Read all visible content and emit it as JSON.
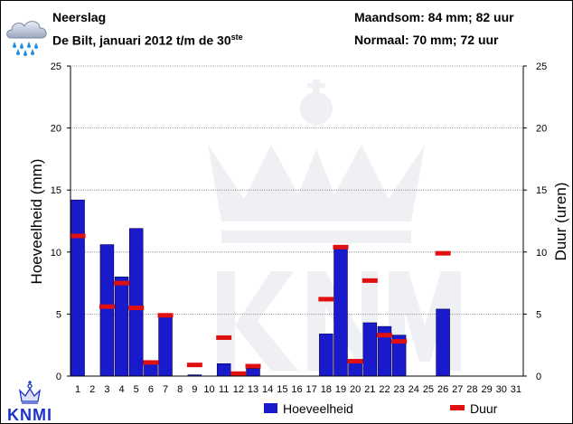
{
  "header": {
    "title": "Neerslag",
    "subtitle_main": "De Bilt, januari 2012 t/m de 30",
    "subtitle_sup": "ste",
    "maandsom": "Maandsom: 84 mm; 82 uur",
    "normaal": "Normaal: 70 mm; 72 uur"
  },
  "logo_text": "KNMI",
  "icon": "rain-cloud-icon",
  "chart_data": {
    "type": "bar",
    "categories": [
      "1",
      "2",
      "3",
      "4",
      "5",
      "6",
      "7",
      "8",
      "9",
      "10",
      "11",
      "12",
      "13",
      "14",
      "15",
      "16",
      "17",
      "18",
      "19",
      "20",
      "21",
      "22",
      "23",
      "24",
      "25",
      "26",
      "27",
      "28",
      "29",
      "30",
      "31"
    ],
    "series": [
      {
        "name": "Hoeveelheid",
        "type": "bar",
        "axis": "left",
        "color": "#1a1acd",
        "values": [
          14.2,
          0,
          10.6,
          8.0,
          11.9,
          1.0,
          4.8,
          0,
          0.1,
          0,
          1.0,
          0.1,
          0.6,
          0,
          0,
          0,
          0,
          3.4,
          10.3,
          1.1,
          4.3,
          4.0,
          3.3,
          0,
          0,
          5.4,
          0,
          0,
          0,
          0,
          0
        ]
      },
      {
        "name": "Duur",
        "type": "marker",
        "axis": "right",
        "color": "#e01010",
        "values": [
          11.3,
          null,
          5.6,
          7.5,
          5.5,
          1.1,
          4.9,
          null,
          0.9,
          null,
          3.1,
          0.2,
          0.8,
          null,
          null,
          null,
          null,
          6.2,
          10.4,
          1.2,
          7.7,
          3.3,
          2.8,
          null,
          null,
          9.9,
          null,
          null,
          null,
          null,
          null
        ]
      }
    ],
    "ylabel": "Hoeveelheid (mm)",
    "ylabel_right": "Duur (uren)",
    "ylim": [
      0,
      25
    ],
    "yticks": [
      "0",
      "5",
      "10",
      "15",
      "20",
      "25"
    ],
    "ylim_right": [
      0,
      25
    ],
    "grid": true,
    "legend": "bottom-right"
  }
}
